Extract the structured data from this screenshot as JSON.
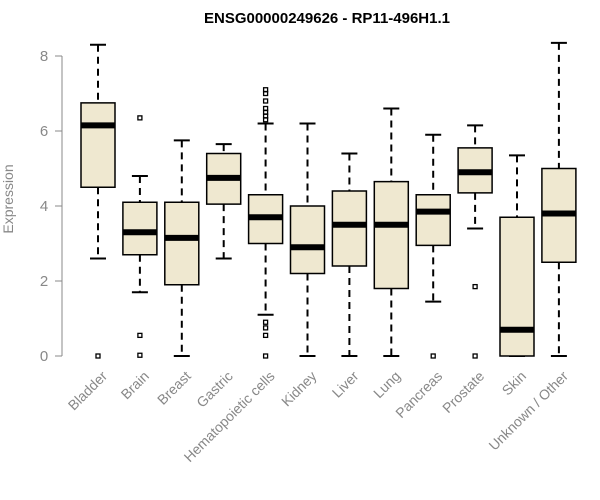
{
  "chart_data": {
    "type": "box",
    "title": "ENSG00000249626 - RP11-496H1.1",
    "ylabel": "Expression",
    "xlabel": "",
    "ylim": [
      0,
      8.35
    ],
    "yticks": [
      0,
      2,
      4,
      6,
      8
    ],
    "grid": false,
    "colors": {
      "box_fill": "#efe8d0",
      "box_stroke": "#000000",
      "axis": "#888888"
    },
    "categories": [
      "Bladder",
      "Brain",
      "Breast",
      "Gastric",
      "Hematopoietic cells",
      "Kidney",
      "Liver",
      "Lung",
      "Pancreas",
      "Prostate",
      "Skin",
      "Unknown / Other"
    ],
    "boxes": [
      {
        "category": "Bladder",
        "whisker_low": 2.6,
        "q1": 4.5,
        "median": 6.15,
        "q3": 6.75,
        "whisker_high": 8.3,
        "outliers": [
          0
        ]
      },
      {
        "category": "Brain",
        "whisker_low": 1.7,
        "q1": 2.7,
        "median": 3.3,
        "q3": 4.1,
        "whisker_high": 4.8,
        "outliers": [
          6.35,
          0.55,
          0.02
        ]
      },
      {
        "category": "Breast",
        "whisker_low": 0,
        "q1": 1.9,
        "median": 3.15,
        "q3": 4.1,
        "whisker_high": 5.75,
        "outliers": []
      },
      {
        "category": "Gastric",
        "whisker_low": 2.6,
        "q1": 4.05,
        "median": 4.75,
        "q3": 5.4,
        "whisker_high": 5.65,
        "outliers": []
      },
      {
        "category": "Hematopoietic cells",
        "whisker_low": 1.1,
        "q1": 3.0,
        "median": 3.7,
        "q3": 4.3,
        "whisker_high": 6.2,
        "outliers": [
          7.1,
          7.0,
          6.8,
          6.6,
          6.5,
          6.4,
          6.3,
          0.9,
          0.75,
          0.55,
          0.0
        ]
      },
      {
        "category": "Kidney",
        "whisker_low": 0,
        "q1": 2.2,
        "median": 2.9,
        "q3": 4.0,
        "whisker_high": 6.2,
        "outliers": []
      },
      {
        "category": "Liver",
        "whisker_low": 0,
        "q1": 2.4,
        "median": 3.5,
        "q3": 4.4,
        "whisker_high": 5.4,
        "outliers": []
      },
      {
        "category": "Lung",
        "whisker_low": 0,
        "q1": 1.8,
        "median": 3.5,
        "q3": 4.65,
        "whisker_high": 6.6,
        "outliers": []
      },
      {
        "category": "Pancreas",
        "whisker_low": 1.45,
        "q1": 2.95,
        "median": 3.85,
        "q3": 4.3,
        "whisker_high": 5.9,
        "outliers": [
          0
        ]
      },
      {
        "category": "Prostate",
        "whisker_low": 3.4,
        "q1": 4.35,
        "median": 4.9,
        "q3": 5.55,
        "whisker_high": 6.15,
        "outliers": [
          1.85,
          0
        ]
      },
      {
        "category": "Skin",
        "whisker_low": 0,
        "q1": 0.0,
        "median": 0.7,
        "q3": 3.7,
        "whisker_high": 5.35,
        "outliers": []
      },
      {
        "category": "Unknown / Other",
        "whisker_low": 0,
        "q1": 2.5,
        "median": 3.8,
        "q3": 5.0,
        "whisker_high": 8.35,
        "outliers": []
      }
    ]
  }
}
